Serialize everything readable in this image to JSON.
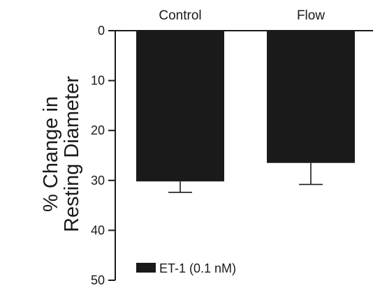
{
  "chart_data": {
    "type": "bar",
    "title": "",
    "xlabel": "",
    "ylabel": [
      "% Change in",
      "Resting Diameter"
    ],
    "categories": [
      "Control",
      "Flow"
    ],
    "series": [
      {
        "name": "ET-1 (0.1 nM)",
        "values": [
          30.2,
          26.5
        ],
        "errors": [
          2.2,
          4.3
        ],
        "color": "#1a1a1a"
      }
    ],
    "ylim": [
      0,
      50
    ],
    "y_inverted": true,
    "x_axis_position": "top",
    "yticks": [
      0,
      10,
      20,
      30,
      40,
      50
    ],
    "grid": false,
    "legend": {
      "placement": "bottom-left",
      "entries": [
        "ET-1 (0.1 nM)"
      ]
    }
  }
}
